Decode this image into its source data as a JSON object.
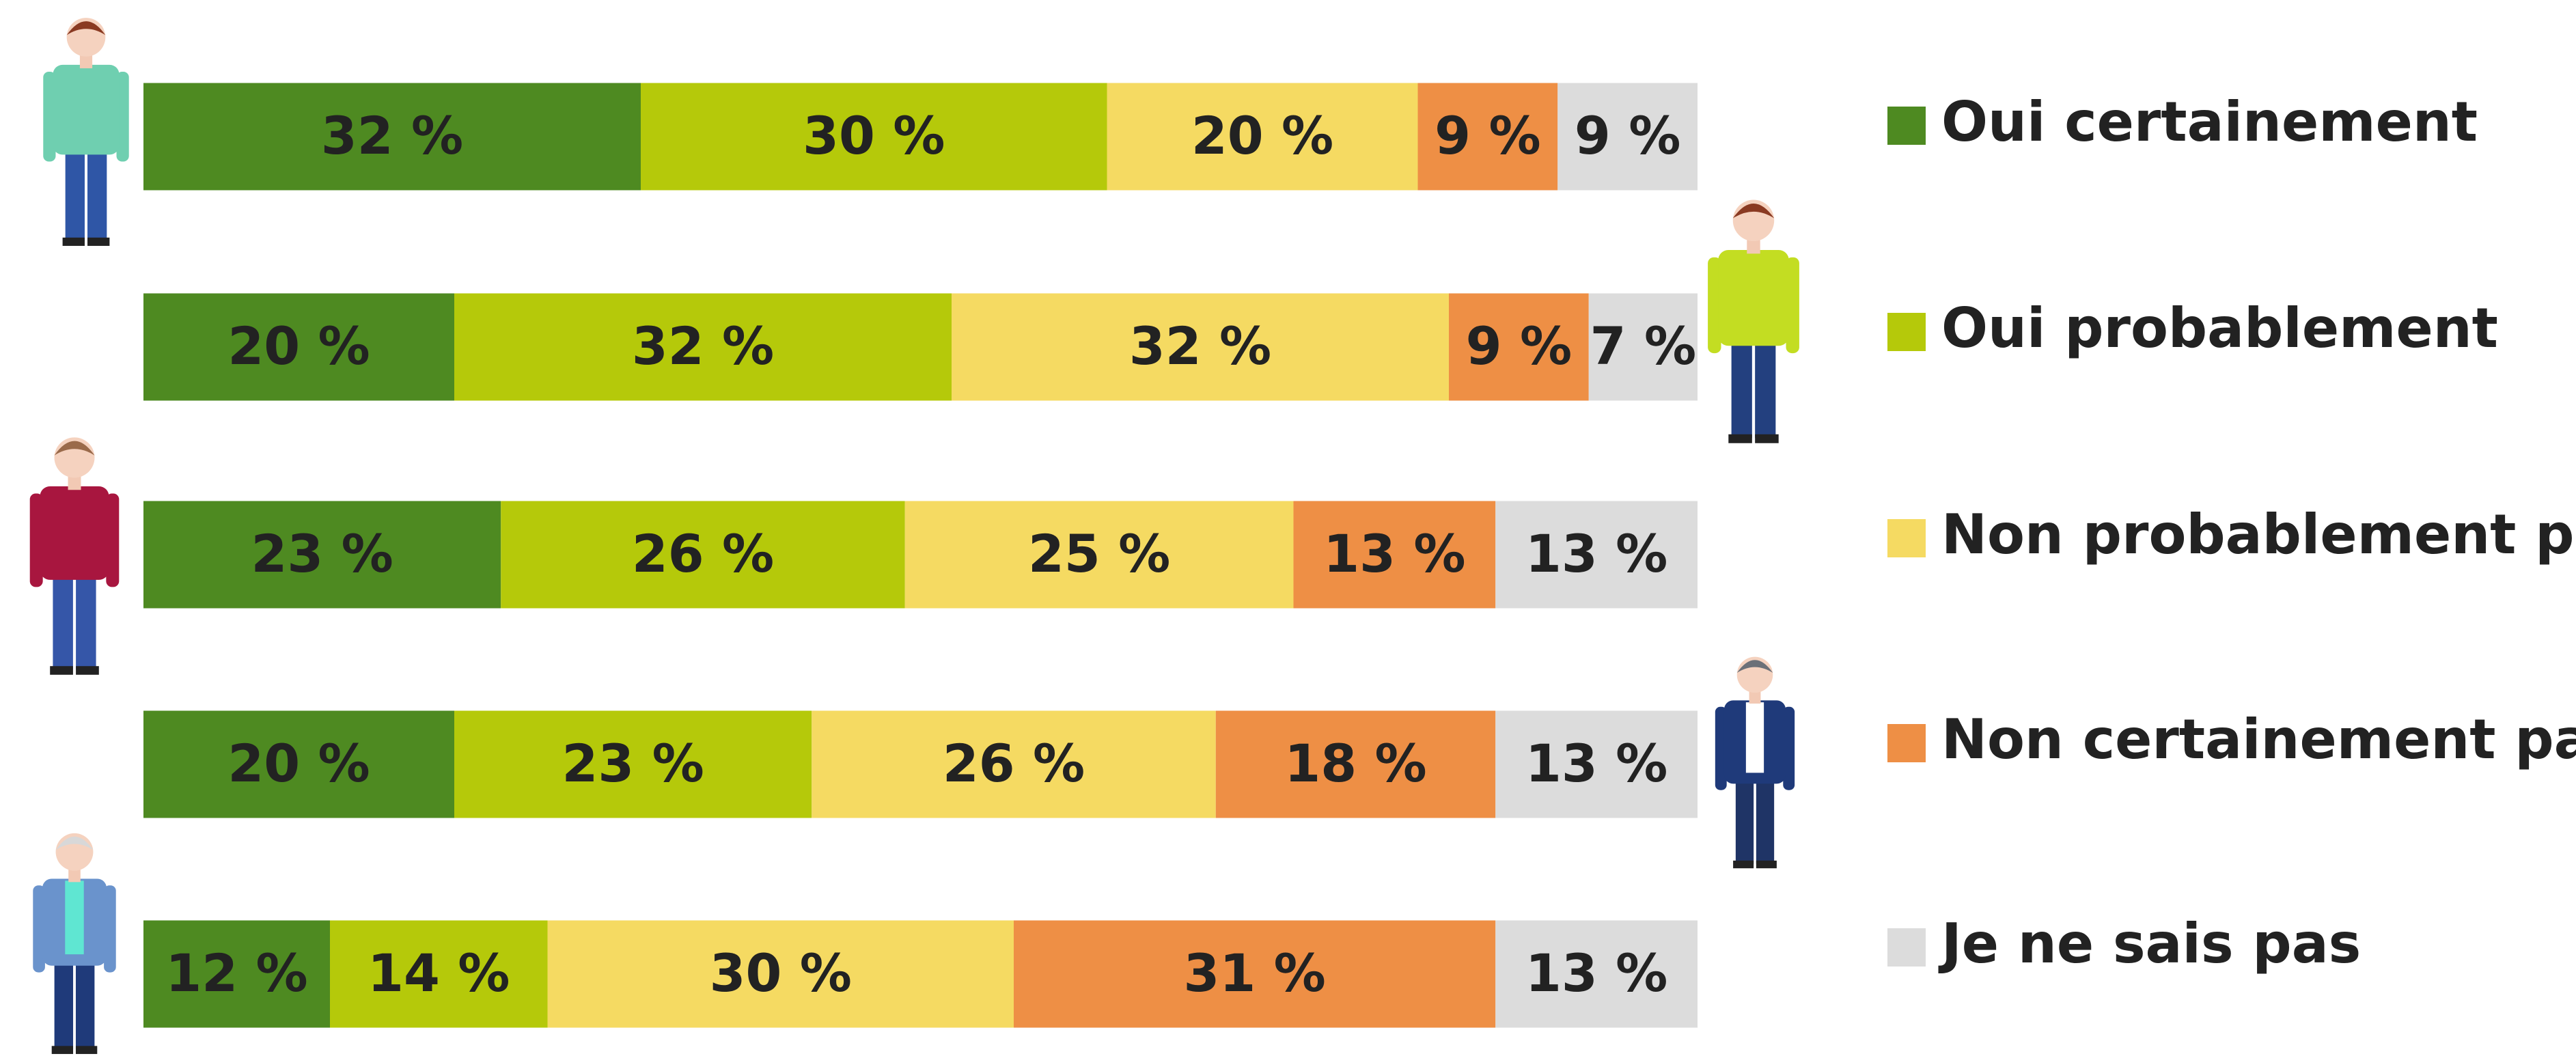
{
  "chart_data": {
    "type": "stacked-bar-horizontal",
    "categories": [
      null,
      null,
      null,
      null,
      null
    ],
    "xlim": [
      0,
      100
    ],
    "series": [
      {
        "name": "Oui certainement",
        "color": "#4e8a21",
        "values": [
          32,
          20,
          23,
          20,
          12
        ],
        "value_labels": [
          "32 %",
          "20 %",
          "23 %",
          "20 %",
          "12 %"
        ]
      },
      {
        "name": "Oui probablement",
        "color": "#b5c90a",
        "values": [
          30,
          32,
          26,
          23,
          14
        ],
        "value_labels": [
          "30 %",
          "32 %",
          "26 %",
          "23 %",
          "14 %"
        ]
      },
      {
        "name": "Non probablement pas",
        "color": "#f5da62",
        "values": [
          20,
          32,
          25,
          26,
          30
        ],
        "value_labels": [
          "20 %",
          "32 %",
          "25 %",
          "26 %",
          "30 %"
        ]
      },
      {
        "name": "Non certainement pas",
        "color": "#ee8f45",
        "values": [
          9,
          9,
          13,
          18,
          31
        ],
        "value_labels": [
          "9 %",
          "9 %",
          "13 %",
          "18 %",
          "31 %"
        ]
      },
      {
        "name": "Je ne sais pas",
        "color": "#dcdcdc",
        "values": [
          9,
          7,
          13,
          13,
          13
        ],
        "value_labels": [
          "9 %",
          "7 %",
          "13 %",
          "13 %",
          "13 %"
        ]
      }
    ],
    "legend": "right"
  }
}
